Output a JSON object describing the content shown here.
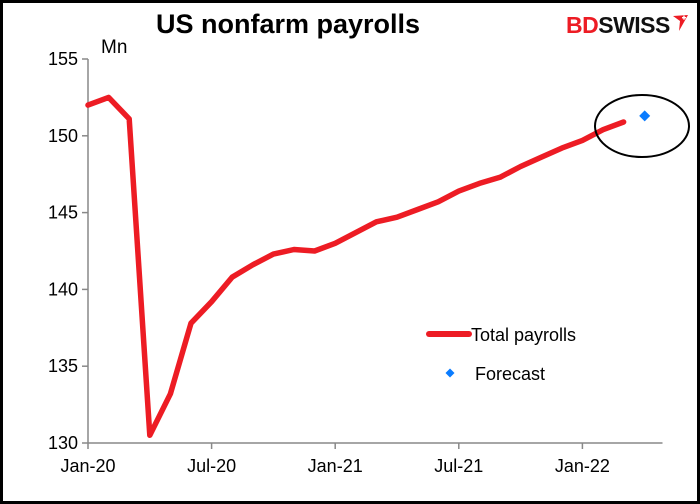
{
  "title": "US nonfarm payrolls",
  "logo": {
    "part1": "BD",
    "part2": "SWISS"
  },
  "colors": {
    "line": "#ed1c24",
    "forecast": "#0a7cff",
    "axis": "#888888",
    "circle": "#000000"
  },
  "chart_data": {
    "type": "line",
    "title": "US nonfarm payrolls",
    "xlabel": "",
    "ylabel": "Mn",
    "ylim": [
      130,
      155
    ],
    "yticks": [
      130,
      135,
      140,
      145,
      150,
      155
    ],
    "xtick_labels": [
      "Jan-20",
      "Jul-20",
      "Jan-21",
      "Jul-21",
      "Jan-22"
    ],
    "grid": false,
    "legend_position": "inside-lower-right",
    "x": [
      "Jan-20",
      "Feb-20",
      "Mar-20",
      "Apr-20",
      "May-20",
      "Jun-20",
      "Jul-20",
      "Aug-20",
      "Sep-20",
      "Oct-20",
      "Nov-20",
      "Dec-20",
      "Jan-21",
      "Feb-21",
      "Mar-21",
      "Apr-21",
      "May-21",
      "Jun-21",
      "Jul-21",
      "Aug-21",
      "Sep-21",
      "Oct-21",
      "Nov-21",
      "Dec-21",
      "Jan-22",
      "Feb-22",
      "Mar-22",
      "Apr-22"
    ],
    "series": [
      {
        "name": "Total payrolls",
        "values": [
          152.0,
          152.5,
          151.1,
          130.5,
          133.2,
          137.8,
          139.2,
          140.8,
          141.6,
          142.3,
          142.6,
          142.5,
          143.0,
          143.7,
          144.4,
          144.7,
          145.2,
          145.7,
          146.4,
          146.9,
          147.3,
          148.0,
          148.6,
          149.2,
          149.7,
          150.4,
          150.9,
          null
        ]
      },
      {
        "name": "Forecast",
        "values": [
          null,
          null,
          null,
          null,
          null,
          null,
          null,
          null,
          null,
          null,
          null,
          null,
          null,
          null,
          null,
          null,
          null,
          null,
          null,
          null,
          null,
          null,
          null,
          null,
          null,
          null,
          null,
          151.3
        ]
      }
    ],
    "annotations": [
      "Ellipse highlighting the last data points and forecast (Mar-22 to Apr-22)"
    ]
  },
  "legend": [
    {
      "label": "Total payrolls",
      "marker": "line"
    },
    {
      "label": "Forecast",
      "marker": "diamond"
    }
  ]
}
